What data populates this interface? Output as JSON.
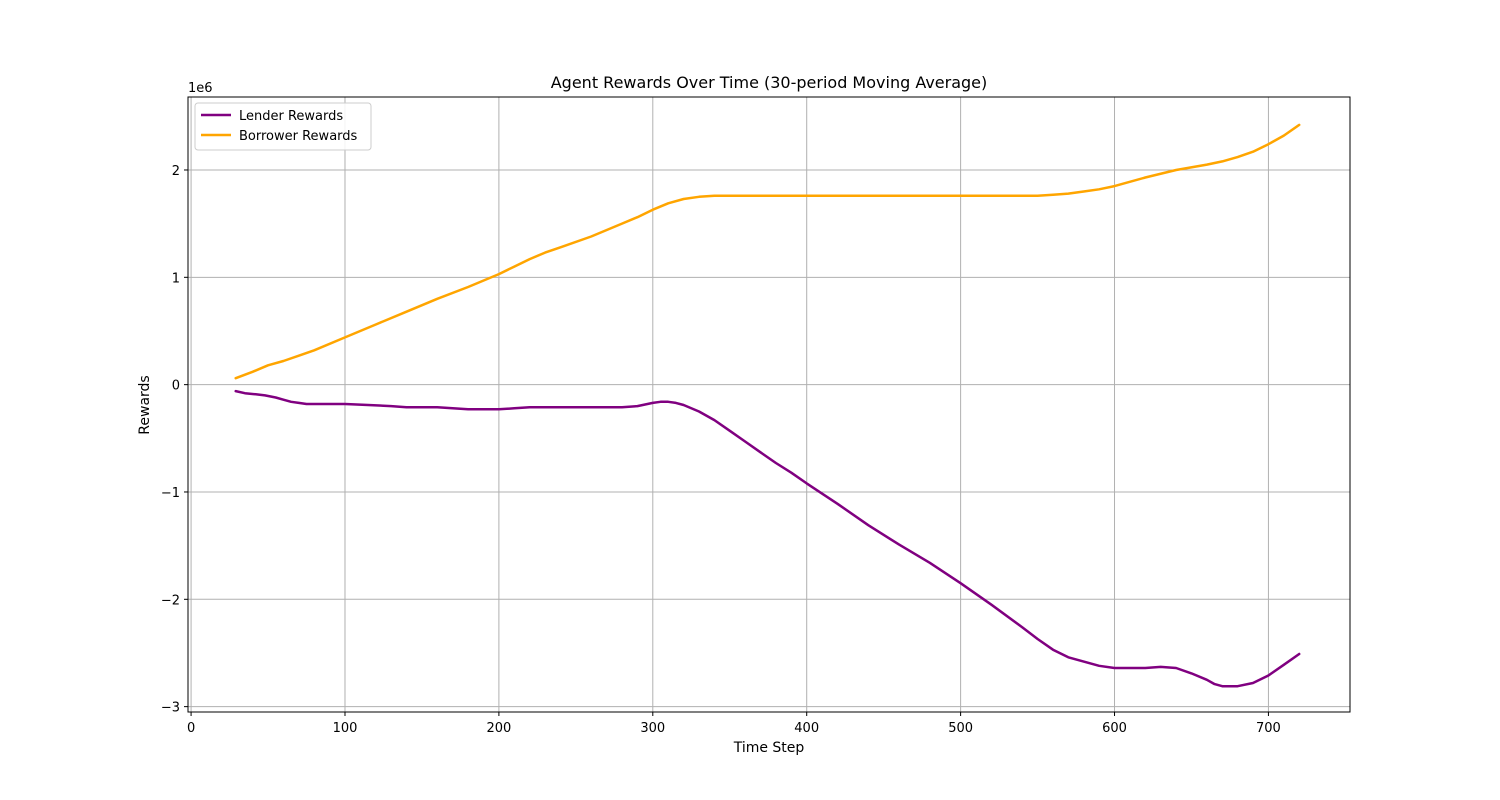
{
  "chart_data": {
    "type": "line",
    "title": "Agent Rewards Over Time (30-period Moving Average)",
    "xlabel": "Time Step",
    "ylabel": "Rewards",
    "y_scale_label": "1e6",
    "xlim": [
      -2,
      753
    ],
    "ylim": [
      -3.05,
      2.68
    ],
    "x_ticks": [
      0,
      100,
      200,
      300,
      400,
      500,
      600,
      700
    ],
    "y_ticks": [
      -3,
      -2,
      -1,
      0,
      1,
      2
    ],
    "y_tick_labels": [
      "−3",
      "−2",
      "−1",
      "0",
      "1",
      "2"
    ],
    "grid": true,
    "legend_position": "top-left",
    "series": [
      {
        "name": "Lender Rewards",
        "color": "#800080",
        "x": [
          29,
          35,
          42,
          48,
          55,
          60,
          65,
          70,
          75,
          85,
          100,
          115,
          130,
          140,
          145,
          155,
          160,
          170,
          180,
          190,
          200,
          210,
          220,
          230,
          240,
          250,
          260,
          270,
          280,
          290,
          300,
          305,
          310,
          315,
          320,
          330,
          340,
          350,
          360,
          370,
          380,
          390,
          400,
          420,
          440,
          460,
          480,
          500,
          520,
          540,
          550,
          560,
          570,
          580,
          590,
          600,
          610,
          620,
          630,
          640,
          650,
          660,
          665,
          670,
          680,
          690,
          700,
          710,
          720
        ],
        "y": [
          -0.06,
          -0.08,
          -0.09,
          -0.1,
          -0.12,
          -0.14,
          -0.16,
          -0.17,
          -0.18,
          -0.18,
          -0.18,
          -0.19,
          -0.2,
          -0.21,
          -0.21,
          -0.21,
          -0.21,
          -0.22,
          -0.23,
          -0.23,
          -0.23,
          -0.22,
          -0.21,
          -0.21,
          -0.21,
          -0.21,
          -0.21,
          -0.21,
          -0.21,
          -0.2,
          -0.17,
          -0.16,
          -0.16,
          -0.17,
          -0.19,
          -0.25,
          -0.33,
          -0.43,
          -0.53,
          -0.63,
          -0.73,
          -0.82,
          -0.92,
          -1.11,
          -1.31,
          -1.49,
          -1.66,
          -1.85,
          -2.05,
          -2.26,
          -2.37,
          -2.47,
          -2.54,
          -2.58,
          -2.62,
          -2.64,
          -2.64,
          -2.64,
          -2.63,
          -2.64,
          -2.69,
          -2.75,
          -2.79,
          -2.81,
          -2.81,
          -2.78,
          -2.71,
          -2.61,
          -2.51
        ]
      },
      {
        "name": "Borrower Rewards",
        "color": "#FFA500",
        "x": [
          29,
          40,
          50,
          60,
          70,
          80,
          100,
          120,
          140,
          160,
          180,
          200,
          210,
          220,
          230,
          240,
          260,
          280,
          290,
          300,
          310,
          320,
          330,
          340,
          400,
          500,
          550,
          560,
          570,
          580,
          590,
          600,
          620,
          640,
          660,
          670,
          680,
          690,
          700,
          710,
          720
        ],
        "y": [
          0.06,
          0.12,
          0.18,
          0.22,
          0.27,
          0.32,
          0.44,
          0.56,
          0.68,
          0.8,
          0.91,
          1.03,
          1.1,
          1.17,
          1.23,
          1.28,
          1.38,
          1.5,
          1.56,
          1.63,
          1.69,
          1.73,
          1.75,
          1.76,
          1.76,
          1.76,
          1.76,
          1.77,
          1.78,
          1.8,
          1.82,
          1.85,
          1.93,
          2.0,
          2.05,
          2.08,
          2.12,
          2.17,
          2.24,
          2.32,
          2.42
        ]
      }
    ]
  }
}
